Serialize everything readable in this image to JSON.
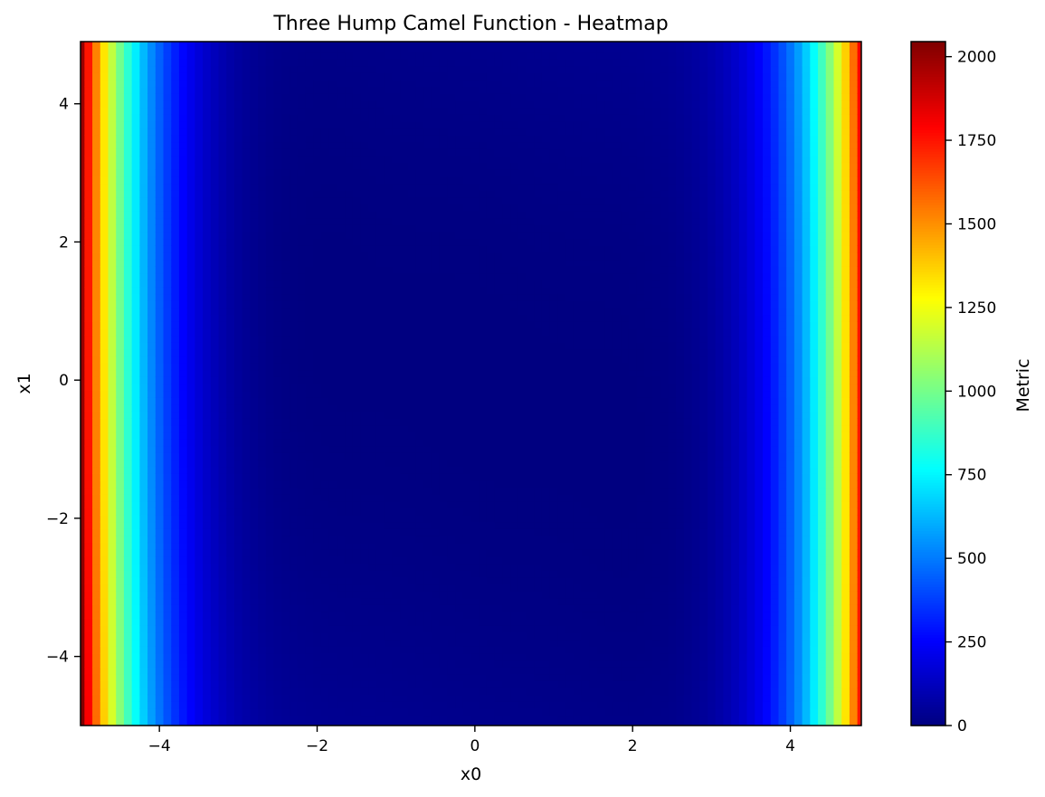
{
  "chart_data": {
    "type": "heatmap",
    "title": "Three Hump Camel Function - Heatmap",
    "xlabel": "x0",
    "ylabel": "x1",
    "colorbar_label": "Metric",
    "colormap": "jet",
    "function": "2*x0^2 - 1.05*x0^4 + x0^6/6 + x0*x1 + x1^2",
    "xlim": [
      -5,
      4.9
    ],
    "ylim": [
      -5,
      4.9
    ],
    "grid_step": 0.1,
    "clim": [
      0,
      2045
    ],
    "x_ticks": [
      -4,
      -2,
      0,
      2,
      4
    ],
    "x_tick_labels": [
      "−4",
      "−2",
      "0",
      "2",
      "4"
    ],
    "y_ticks": [
      -4,
      -2,
      0,
      2,
      4
    ],
    "y_tick_labels": [
      "−4",
      "−2",
      "0",
      "2",
      "4"
    ],
    "colorbar_ticks": [
      0,
      250,
      500,
      750,
      1000,
      1250,
      1500,
      1750,
      2000
    ],
    "colorbar_tick_labels": [
      "0",
      "250",
      "500",
      "750",
      "1000",
      "1250",
      "1500",
      "1750",
      "2000"
    ],
    "grid": false
  }
}
